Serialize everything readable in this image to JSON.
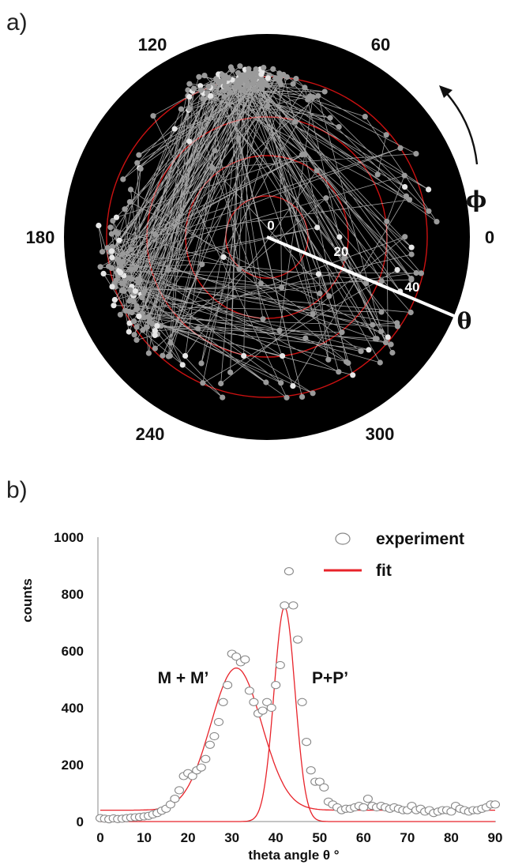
{
  "panel_a": {
    "label": "a)",
    "phi_labels": [
      "120",
      "60",
      "180",
      "0",
      "240",
      "300"
    ],
    "ring_labels": [
      "0",
      "20",
      "40"
    ],
    "phi_symbol": "ϕ",
    "theta_symbol": "θ",
    "colors": {
      "background": "#000000",
      "rings": "#cc1111",
      "tracks": "#dddddd",
      "points": "#9a9a9a",
      "ray": "#ffffff"
    }
  },
  "chart_data": {
    "type": "scatter",
    "label": "b)",
    "xlabel": "theta angle θ °",
    "ylabel": "counts",
    "xlim": [
      0,
      90
    ],
    "ylim": [
      0,
      1000
    ],
    "xticks": [
      "0",
      "10",
      "20",
      "30",
      "40",
      "50",
      "60",
      "70",
      "80",
      "90"
    ],
    "yticks": [
      "0",
      "200",
      "400",
      "600",
      "800",
      "1000"
    ],
    "legend": {
      "position": "top-right",
      "entries": [
        "experiment",
        "fit"
      ]
    },
    "annotations": [
      "M + M’",
      "P+P’"
    ],
    "colors": {
      "fit": "#e8232a",
      "markers": "#888888"
    },
    "series": [
      {
        "name": "experiment",
        "kind": "scatter",
        "x": [
          0,
          1,
          2,
          3,
          4,
          5,
          6,
          7,
          8,
          9,
          10,
          11,
          12,
          13,
          14,
          15,
          16,
          17,
          18,
          19,
          20,
          21,
          22,
          23,
          24,
          25,
          26,
          27,
          28,
          29,
          30,
          31,
          32,
          33,
          34,
          35,
          36,
          37,
          38,
          39,
          40,
          41,
          42,
          43,
          44,
          45,
          46,
          47,
          48,
          49,
          50,
          51,
          52,
          53,
          54,
          55,
          56,
          57,
          58,
          59,
          60,
          61,
          62,
          63,
          64,
          65,
          66,
          67,
          68,
          69,
          70,
          71,
          72,
          73,
          74,
          75,
          76,
          77,
          78,
          79,
          80,
          81,
          82,
          83,
          84,
          85,
          86,
          87,
          88,
          89,
          90
        ],
        "y": [
          12,
          10,
          8,
          11,
          9,
          10,
          12,
          14,
          15,
          16,
          18,
          20,
          25,
          30,
          38,
          45,
          60,
          80,
          110,
          160,
          170,
          160,
          180,
          190,
          220,
          270,
          300,
          350,
          420,
          480,
          590,
          580,
          560,
          570,
          460,
          420,
          380,
          390,
          420,
          400,
          480,
          550,
          760,
          880,
          760,
          640,
          420,
          280,
          180,
          140,
          140,
          120,
          70,
          60,
          50,
          40,
          45,
          45,
          50,
          55,
          50,
          80,
          55,
          50,
          55,
          50,
          45,
          50,
          45,
          40,
          40,
          55,
          40,
          45,
          35,
          40,
          30,
          35,
          40,
          40,
          35,
          55,
          45,
          40,
          35,
          40,
          40,
          45,
          50,
          60,
          60
        ]
      },
      {
        "name": "fit",
        "kind": "line",
        "components": [
          {
            "label": "M + M’",
            "baseline": 40,
            "amplitude": 500,
            "center": 31,
            "sigma": 5.8
          },
          {
            "label": "P+P’",
            "baseline": 0,
            "amplitude": 755,
            "center": 42,
            "sigma": 2.4
          }
        ]
      }
    ]
  }
}
